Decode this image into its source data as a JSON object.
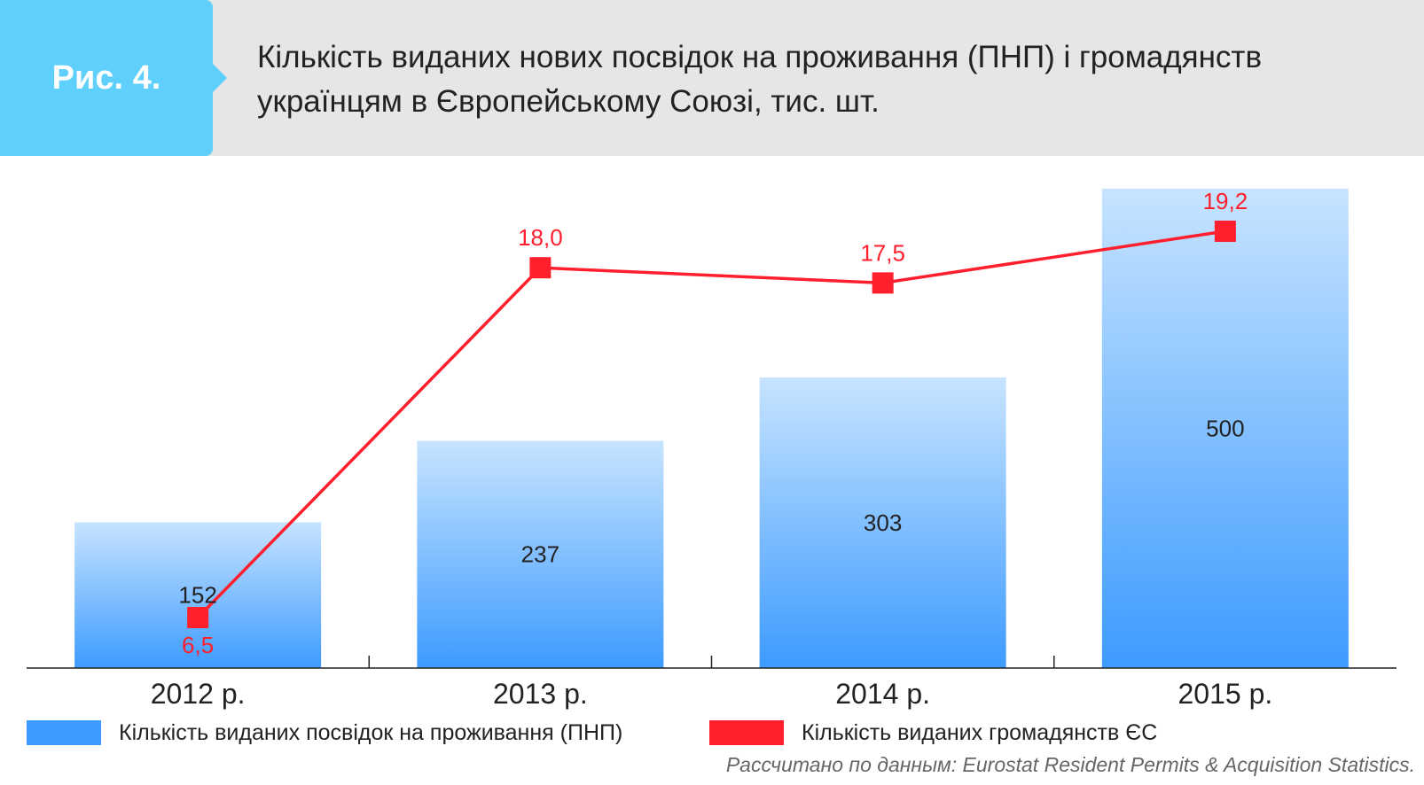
{
  "figure": {
    "label": "Рис. 4.",
    "title": "Кількість виданих нових посвідок на проживання (ПНП) і громадянств українцям в Європейському Союзі, тис. шт."
  },
  "chart_data": {
    "type": "bar",
    "categories": [
      "2012 р.",
      "2013 р.",
      "2014 р.",
      "2015 р."
    ],
    "series": [
      {
        "name": "Кількість виданих посвідок на проживання (ПНП)",
        "type": "bar",
        "values": [
          152,
          237,
          303,
          500
        ],
        "labels": [
          "152",
          "237",
          "303",
          "500"
        ],
        "color": "#3d9bff"
      },
      {
        "name": "Кількість виданих громадянств ЄС",
        "type": "line",
        "values": [
          6.5,
          18.0,
          17.5,
          19.2
        ],
        "labels": [
          "6,5",
          "18,0",
          "17,5",
          "19,2"
        ],
        "color": "#ff1f2d"
      }
    ],
    "grid": false,
    "legend_position": "bottom"
  },
  "legend": {
    "items": [
      {
        "label": "Кількість виданих посвідок на проживання (ПНП)",
        "color": "#3d9bff"
      },
      {
        "label": "Кількість виданих громадянств ЄС",
        "color": "#ff1f2d"
      }
    ]
  },
  "source": "Рассчитано по данным: Eurostat Resident Permits & Acquisition Statistics."
}
